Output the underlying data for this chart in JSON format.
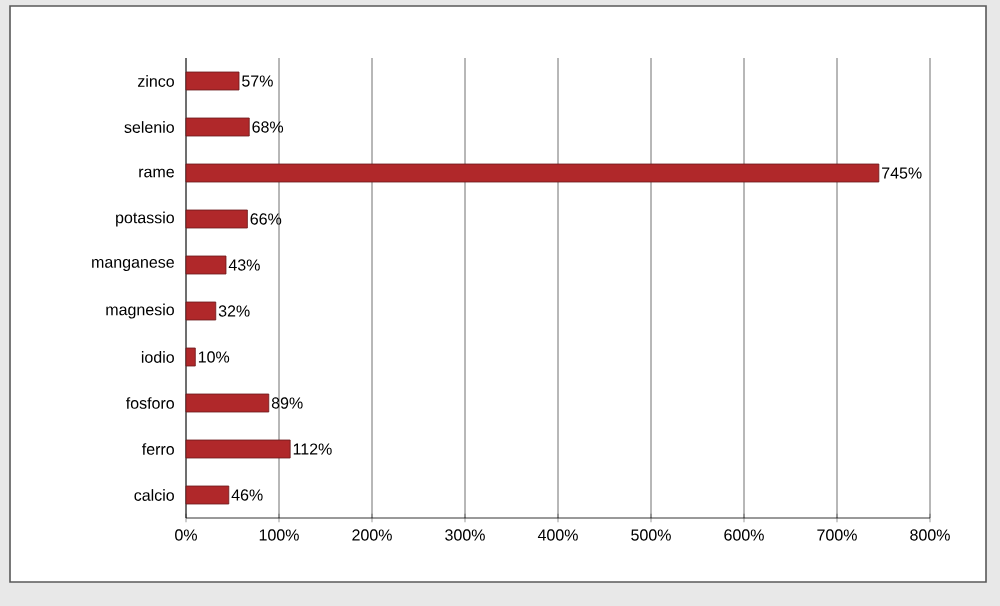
{
  "chart_data": {
    "type": "bar",
    "orientation": "horizontal",
    "categories": [
      "zinco",
      "selenio",
      "rame",
      "potassio",
      "manganese",
      "magnesio",
      "iodio",
      "fosforo",
      "ferro",
      "calcio"
    ],
    "values": [
      57,
      68,
      745,
      66,
      43,
      32,
      10,
      89,
      112,
      46
    ],
    "value_labels": [
      "57%",
      "68%",
      "745%",
      "66%",
      "43%",
      "32%",
      "10%",
      "89%",
      "112%",
      "46%"
    ],
    "color": "#b0282a",
    "xlim": [
      0,
      800
    ],
    "xticks": [
      {
        "value": 0,
        "label": "0%"
      },
      {
        "value": 100,
        "label": "100%"
      },
      {
        "value": 200,
        "label": "200%"
      },
      {
        "value": 300,
        "label": "300%"
      },
      {
        "value": 400,
        "label": "400%"
      },
      {
        "value": 500,
        "label": "500%"
      },
      {
        "value": 600,
        "label": "600%"
      },
      {
        "value": 700,
        "label": "700%"
      },
      {
        "value": 800,
        "label": "800%"
      }
    ],
    "grid": "x"
  }
}
